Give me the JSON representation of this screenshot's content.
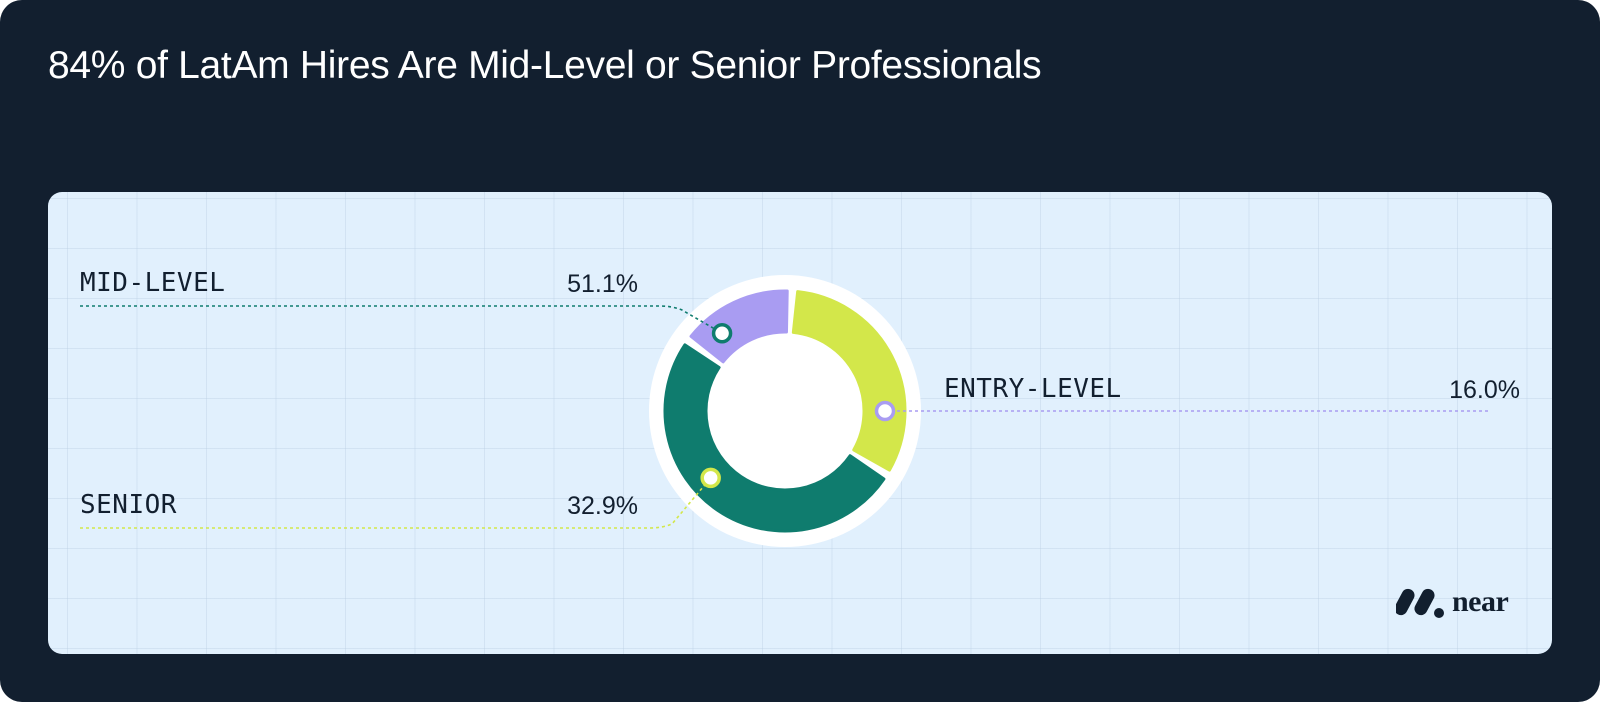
{
  "title": "84% of LatAm Hires Are Mid-Level or Senior Professionals",
  "brand": {
    "logo_text": "near"
  },
  "colors": {
    "frame_bg": "#121f2f",
    "panel_bg": "#e1f0fd",
    "mid_level": "#0f7c6e",
    "entry_level": "#a99cf2",
    "senior": "#d3e74a"
  },
  "chart_data": {
    "type": "pie",
    "variant": "donut",
    "title": "84% of LatAm Hires Are Mid-Level or Senior Professionals",
    "categories": [
      "MID-LEVEL",
      "ENTRY-LEVEL",
      "SENIOR"
    ],
    "values": [
      51.1,
      16.0,
      32.9
    ],
    "value_labels": [
      "51.1%",
      "16.0%",
      "32.9%"
    ],
    "unit": "%",
    "colors": [
      "#0f7c6e",
      "#a99cf2",
      "#d3e74a"
    ],
    "legend": "none",
    "grid": true
  }
}
